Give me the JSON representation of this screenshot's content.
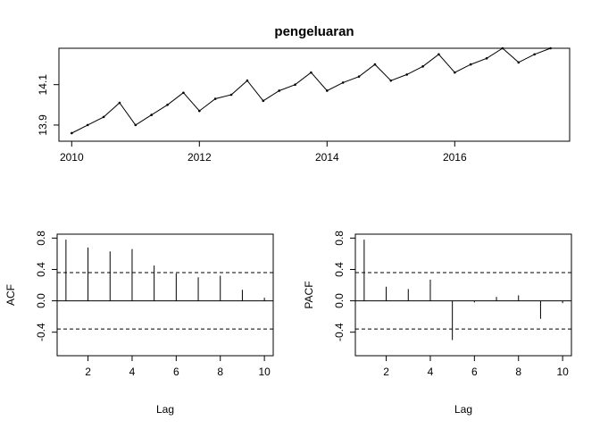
{
  "chart_data": [
    {
      "type": "line",
      "title": "pengeluaran",
      "xlabel": "",
      "ylabel": "",
      "xlim": [
        2009.8,
        2017.8
      ],
      "ylim": [
        13.82,
        14.28
      ],
      "xticks": [
        "2010",
        "2012",
        "2014",
        "2016"
      ],
      "xtick_values": [
        2010,
        2012,
        2014,
        2016
      ],
      "yticks": [
        "13.9",
        "14.1"
      ],
      "ytick_values": [
        13.9,
        14.1
      ],
      "x": [
        2010.0,
        2010.25,
        2010.5,
        2010.75,
        2011.0,
        2011.25,
        2011.5,
        2011.75,
        2012.0,
        2012.25,
        2012.5,
        2012.75,
        2013.0,
        2013.25,
        2013.5,
        2013.75,
        2014.0,
        2014.25,
        2014.5,
        2014.75,
        2015.0,
        2015.25,
        2015.5,
        2015.75,
        2016.0,
        2016.25,
        2016.5,
        2016.75,
        2017.0,
        2017.25,
        2017.5
      ],
      "y": [
        13.86,
        13.9,
        13.94,
        14.01,
        13.9,
        13.95,
        14.0,
        14.06,
        13.97,
        14.03,
        14.05,
        14.12,
        14.02,
        14.07,
        14.1,
        14.16,
        14.07,
        14.11,
        14.14,
        14.2,
        14.12,
        14.15,
        14.19,
        14.25,
        14.16,
        14.2,
        14.23,
        14.28,
        14.21,
        14.25,
        14.28
      ],
      "grid": false
    },
    {
      "type": "bar",
      "title": "",
      "xlabel": "Lag",
      "ylabel": "ACF",
      "xlim": [
        0.6,
        10.4
      ],
      "ylim": [
        -0.7,
        0.85
      ],
      "xticks": [
        "2",
        "4",
        "6",
        "8",
        "10"
      ],
      "xtick_values": [
        2,
        4,
        6,
        8,
        10
      ],
      "yticks": [
        "-0.4",
        "0.0",
        "0.4",
        "0.8"
      ],
      "ytick_values": [
        -0.4,
        0.0,
        0.4,
        0.8
      ],
      "lags": [
        1,
        2,
        3,
        4,
        5,
        6,
        7,
        8,
        9,
        10
      ],
      "values": [
        0.78,
        0.68,
        0.63,
        0.66,
        0.45,
        0.35,
        0.3,
        0.32,
        0.14,
        0.04
      ],
      "conf_limit": 0.36,
      "grid": false
    },
    {
      "type": "bar",
      "title": "",
      "xlabel": "Lag",
      "ylabel": "PACF",
      "xlim": [
        0.6,
        10.4
      ],
      "ylim": [
        -0.7,
        0.85
      ],
      "xticks": [
        "2",
        "4",
        "6",
        "8",
        "10"
      ],
      "xtick_values": [
        2,
        4,
        6,
        8,
        10
      ],
      "yticks": [
        "-0.4",
        "0.0",
        "0.4",
        "0.8"
      ],
      "ytick_values": [
        -0.4,
        0.0,
        0.4,
        0.8
      ],
      "lags": [
        1,
        2,
        3,
        4,
        5,
        6,
        7,
        8,
        9,
        10
      ],
      "values": [
        0.78,
        0.18,
        0.15,
        0.27,
        -0.5,
        -0.02,
        0.05,
        0.07,
        -0.23,
        -0.03
      ],
      "conf_limit": 0.36,
      "grid": false
    }
  ]
}
